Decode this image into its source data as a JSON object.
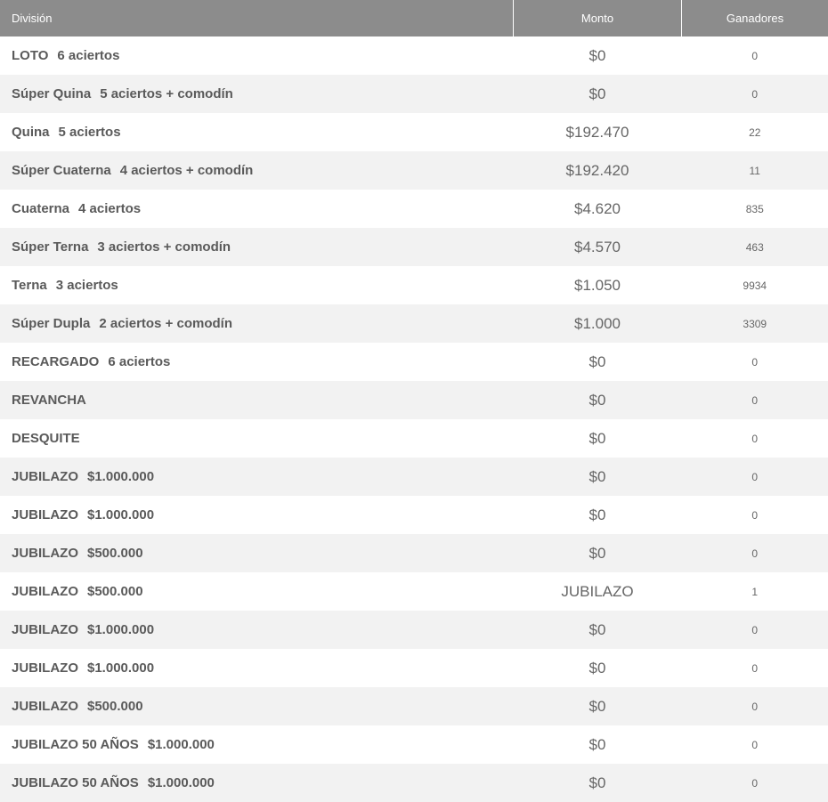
{
  "table": {
    "headers": {
      "division": "División",
      "monto": "Monto",
      "ganadores": "Ganadores"
    },
    "rows": [
      {
        "name": "LOTO",
        "detail": "6 aciertos",
        "monto": "$0",
        "ganadores": "0"
      },
      {
        "name": "Súper Quina",
        "detail": "5 aciertos + comodín",
        "monto": "$0",
        "ganadores": "0"
      },
      {
        "name": "Quina",
        "detail": "5 aciertos",
        "monto": "$192.470",
        "ganadores": "22"
      },
      {
        "name": "Súper Cuaterna",
        "detail": "4 aciertos + comodín",
        "monto": "$192.420",
        "ganadores": "11"
      },
      {
        "name": "Cuaterna",
        "detail": "4 aciertos",
        "monto": "$4.620",
        "ganadores": "835"
      },
      {
        "name": "Súper Terna",
        "detail": "3 aciertos + comodín",
        "monto": "$4.570",
        "ganadores": "463"
      },
      {
        "name": "Terna",
        "detail": "3 aciertos",
        "monto": "$1.050",
        "ganadores": "9934"
      },
      {
        "name": "Súper Dupla",
        "detail": "2 aciertos + comodín",
        "monto": "$1.000",
        "ganadores": "3309"
      },
      {
        "name": "RECARGADO",
        "detail": "6 aciertos",
        "monto": "$0",
        "ganadores": "0"
      },
      {
        "name": "REVANCHA",
        "detail": "",
        "monto": "$0",
        "ganadores": "0"
      },
      {
        "name": "DESQUITE",
        "detail": "",
        "monto": "$0",
        "ganadores": "0"
      },
      {
        "name": "JUBILAZO",
        "detail": "$1.000.000",
        "monto": "$0",
        "ganadores": "0"
      },
      {
        "name": "JUBILAZO",
        "detail": "$1.000.000",
        "monto": "$0",
        "ganadores": "0"
      },
      {
        "name": "JUBILAZO",
        "detail": "$500.000",
        "monto": "$0",
        "ganadores": "0"
      },
      {
        "name": "JUBILAZO",
        "detail": "$500.000",
        "monto": "JUBILAZO",
        "ganadores": "1"
      },
      {
        "name": "JUBILAZO",
        "detail": "$1.000.000",
        "monto": "$0",
        "ganadores": "0"
      },
      {
        "name": "JUBILAZO",
        "detail": "$1.000.000",
        "monto": "$0",
        "ganadores": "0"
      },
      {
        "name": "JUBILAZO",
        "detail": "$500.000",
        "monto": "$0",
        "ganadores": "0"
      },
      {
        "name": "JUBILAZO 50 AÑOS",
        "detail": "$1.000.000",
        "monto": "$0",
        "ganadores": "0"
      },
      {
        "name": "JUBILAZO 50 AÑOS",
        "detail": "$1.000.000",
        "monto": "$0",
        "ganadores": "0"
      }
    ]
  }
}
